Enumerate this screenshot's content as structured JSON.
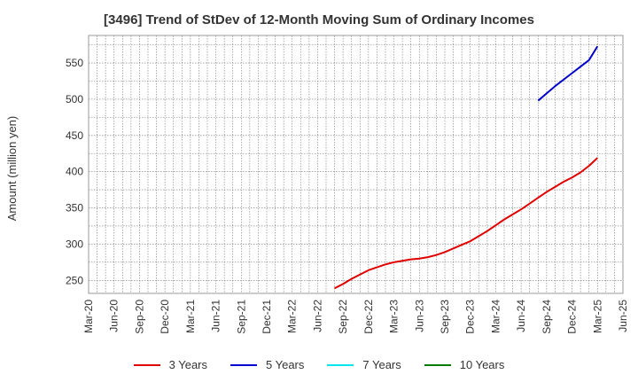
{
  "chart_data": {
    "type": "line",
    "title": "[3496]  Trend of StDev of 12-Month Moving Sum of Ordinary Incomes",
    "ylabel": "Amount (million yen)",
    "xlabel": "",
    "ylim": [
      232,
      588
    ],
    "yticks": [
      250,
      300,
      350,
      400,
      450,
      500,
      550
    ],
    "xtick_labels": [
      "Mar-20",
      "Jun-20",
      "Sep-20",
      "Dec-20",
      "Mar-21",
      "Jun-21",
      "Sep-21",
      "Dec-21",
      "Mar-22",
      "Jun-22",
      "Sep-22",
      "Dec-22",
      "Mar-23",
      "Jun-23",
      "Sep-23",
      "Dec-23",
      "Mar-24",
      "Jun-24",
      "Sep-24",
      "Dec-24",
      "Mar-25",
      "Jun-25"
    ],
    "grid": true,
    "legend_position": "bottom",
    "series": [
      {
        "name": "3 Years",
        "color": "#e00000",
        "points": [
          {
            "x": "Aug-22",
            "y": 239
          },
          {
            "x": "Sep-22",
            "y": 245
          },
          {
            "x": "Oct-22",
            "y": 252
          },
          {
            "x": "Nov-22",
            "y": 258
          },
          {
            "x": "Dec-22",
            "y": 264
          },
          {
            "x": "Jan-23",
            "y": 268
          },
          {
            "x": "Feb-23",
            "y": 272
          },
          {
            "x": "Mar-23",
            "y": 275
          },
          {
            "x": "Apr-23",
            "y": 277
          },
          {
            "x": "May-23",
            "y": 279
          },
          {
            "x": "Jun-23",
            "y": 280
          },
          {
            "x": "Jul-23",
            "y": 282
          },
          {
            "x": "Aug-23",
            "y": 285
          },
          {
            "x": "Sep-23",
            "y": 289
          },
          {
            "x": "Oct-23",
            "y": 294
          },
          {
            "x": "Nov-23",
            "y": 299
          },
          {
            "x": "Dec-23",
            "y": 304
          },
          {
            "x": "Jan-24",
            "y": 311
          },
          {
            "x": "Feb-24",
            "y": 318
          },
          {
            "x": "Mar-24",
            "y": 326
          },
          {
            "x": "Apr-24",
            "y": 334
          },
          {
            "x": "May-24",
            "y": 341
          },
          {
            "x": "Jun-24",
            "y": 348
          },
          {
            "x": "Jul-24",
            "y": 356
          },
          {
            "x": "Aug-24",
            "y": 364
          },
          {
            "x": "Sep-24",
            "y": 372
          },
          {
            "x": "Oct-24",
            "y": 379
          },
          {
            "x": "Nov-24",
            "y": 386
          },
          {
            "x": "Dec-24",
            "y": 392
          },
          {
            "x": "Jan-25",
            "y": 399
          },
          {
            "x": "Feb-25",
            "y": 408
          },
          {
            "x": "Mar-25",
            "y": 419
          }
        ]
      },
      {
        "name": "5 Years",
        "color": "#0000cc",
        "points": [
          {
            "x": "Aug-24",
            "y": 498
          },
          {
            "x": "Sep-24",
            "y": 508
          },
          {
            "x": "Oct-24",
            "y": 518
          },
          {
            "x": "Nov-24",
            "y": 527
          },
          {
            "x": "Dec-24",
            "y": 536
          },
          {
            "x": "Jan-25",
            "y": 545
          },
          {
            "x": "Feb-25",
            "y": 554
          },
          {
            "x": "Mar-25",
            "y": 573
          }
        ]
      },
      {
        "name": "7 Years",
        "color": "#00e5ee",
        "points": []
      },
      {
        "name": "10 Years",
        "color": "#007a00",
        "points": []
      }
    ]
  }
}
